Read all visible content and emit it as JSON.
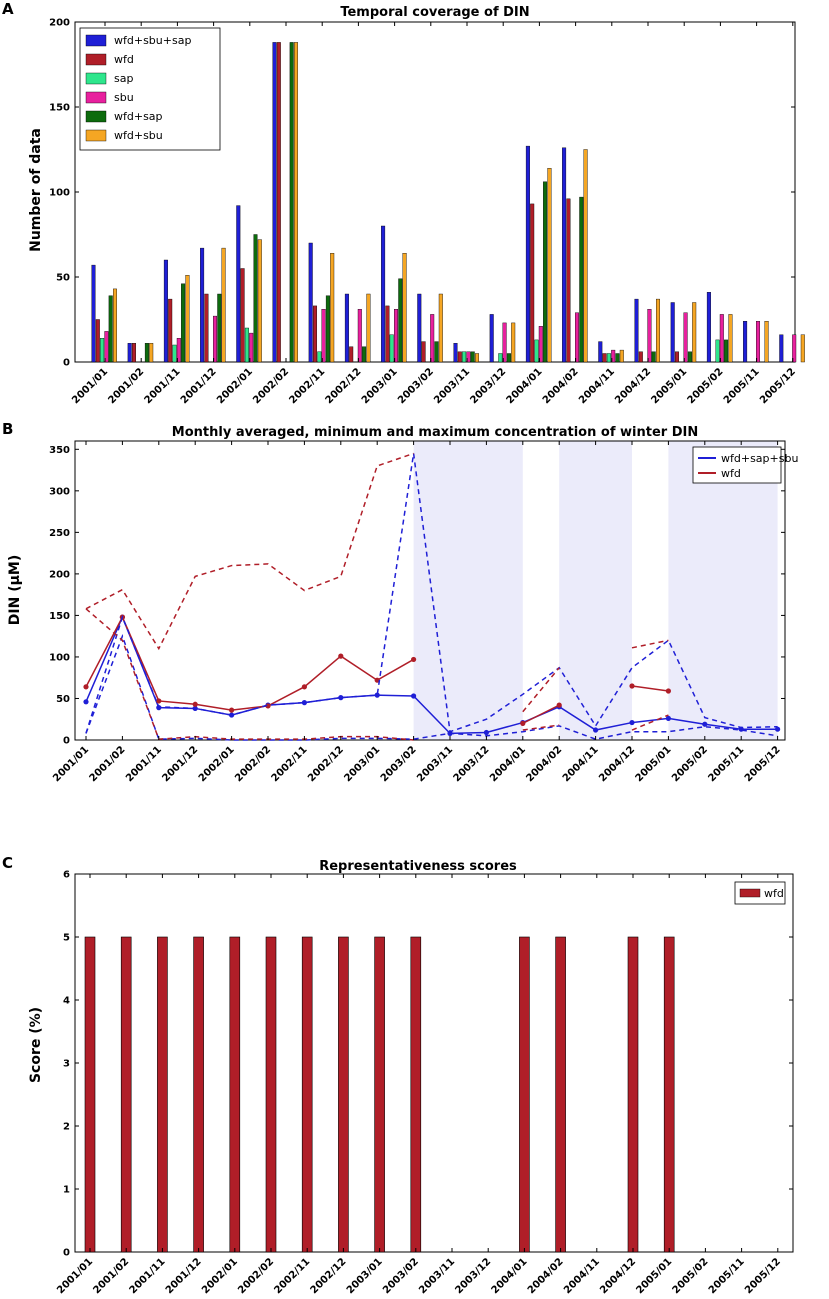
{
  "categories": [
    "2001/01",
    "2001/02",
    "2001/11",
    "2001/12",
    "2002/01",
    "2002/02",
    "2002/11",
    "2002/12",
    "2003/01",
    "2003/02",
    "2003/11",
    "2003/12",
    "2004/01",
    "2004/02",
    "2004/11",
    "2004/12",
    "2005/01",
    "2005/02",
    "2005/11",
    "2005/12"
  ],
  "chart_data": [
    {
      "panel": "A",
      "type": "bar",
      "title": "Temporal coverage of DIN",
      "xlabel": "",
      "ylabel": "Number of data",
      "ylim": [
        0,
        200
      ],
      "yticks": [
        0,
        50,
        100,
        150,
        200
      ],
      "legend_position": "top-left",
      "series": [
        {
          "name": "wfd+sbu+sap",
          "color": "#1f1fd6",
          "values": [
            57,
            11,
            60,
            67,
            92,
            188,
            70,
            40,
            80,
            40,
            11,
            28,
            127,
            126,
            12,
            37,
            35,
            41,
            24,
            16
          ]
        },
        {
          "name": "wfd",
          "color": "#b01e28",
          "values": [
            25,
            11,
            37,
            40,
            55,
            188,
            33,
            9,
            33,
            12,
            6,
            0,
            93,
            96,
            5,
            6,
            6,
            0,
            0,
            0
          ]
        },
        {
          "name": "sap",
          "color": "#2ee68c",
          "values": [
            14,
            0,
            10,
            0,
            20,
            0,
            6,
            0,
            16,
            0,
            6,
            5,
            13,
            0,
            5,
            0,
            0,
            13,
            0,
            0
          ]
        },
        {
          "name": "sbu",
          "color": "#e8209e",
          "values": [
            18,
            0,
            14,
            27,
            17,
            0,
            31,
            31,
            31,
            28,
            6,
            23,
            21,
            29,
            7,
            31,
            29,
            28,
            24,
            16
          ]
        },
        {
          "name": "wfd+sap",
          "color": "#0d6b0d",
          "values": [
            39,
            11,
            46,
            40,
            75,
            188,
            39,
            9,
            49,
            12,
            6,
            5,
            106,
            97,
            5,
            6,
            6,
            13,
            0,
            0
          ]
        },
        {
          "name": "wfd+sbu",
          "color": "#f5a623",
          "values": [
            43,
            11,
            51,
            67,
            72,
            188,
            64,
            40,
            64,
            40,
            5,
            23,
            114,
            125,
            7,
            37,
            35,
            28,
            24,
            16
          ]
        }
      ]
    },
    {
      "panel": "B",
      "type": "line",
      "title": "Monthly averaged, minimum and maximum concentration of winter DIN",
      "xlabel": "",
      "ylabel": "DIN (μM)",
      "ylim": [
        0,
        360
      ],
      "yticks": [
        0,
        50,
        100,
        150,
        200,
        250,
        300,
        350
      ],
      "legend_position": "top-right",
      "shaded_ranges": [
        [
          "2003/02",
          "2004/01"
        ],
        [
          "2004/02",
          "2004/12"
        ],
        [
          "2005/01",
          "2005/12"
        ]
      ],
      "series": [
        {
          "name": "wfd+sap+sbu",
          "color": "#1f1fd6",
          "style": "solid",
          "values": [
            46,
            148,
            39,
            38,
            30,
            42,
            45,
            51,
            54,
            53,
            8,
            9,
            21,
            40,
            12,
            21,
            26,
            19,
            13,
            13
          ]
        },
        {
          "name": "wfd",
          "color": "#b01e28",
          "style": "solid",
          "values": [
            64,
            148,
            47,
            43,
            36,
            41,
            64,
            101,
            72,
            97,
            null,
            null,
            20,
            42,
            null,
            65,
            59,
            null,
            null,
            null
          ]
        },
        {
          "name": "wfd+sap+sbu min",
          "color": "#1f1fd6",
          "style": "dashed",
          "legend": false,
          "values": [
            8,
            125,
            1,
            2,
            0,
            0,
            0,
            2,
            2,
            1,
            8,
            5,
            10,
            17,
            1,
            10,
            10,
            16,
            12,
            5
          ]
        },
        {
          "name": "wfd+sap+sbu max",
          "color": "#1f1fd6",
          "style": "dashed",
          "legend": false,
          "values": [
            8,
            148,
            40,
            38,
            30,
            42,
            45,
            51,
            54,
            345,
            10,
            25,
            55,
            87,
            17,
            87,
            120,
            27,
            15,
            16
          ]
        },
        {
          "name": "wfd min",
          "color": "#b01e28",
          "style": "dashed",
          "legend": false,
          "values": [
            158,
            120,
            1,
            4,
            1,
            1,
            1,
            4,
            4,
            0,
            null,
            null,
            12,
            18,
            null,
            12,
            30,
            null,
            null,
            null
          ]
        },
        {
          "name": "wfd max",
          "color": "#b01e28",
          "style": "dashed",
          "legend": false,
          "values": [
            158,
            181,
            110,
            197,
            210,
            212,
            180,
            197,
            330,
            345,
            null,
            null,
            34,
            87,
            null,
            111,
            120,
            null,
            null,
            null
          ]
        }
      ]
    },
    {
      "panel": "C",
      "type": "bar",
      "title": "Representativeness scores",
      "xlabel": "",
      "ylabel": "Score (%)",
      "ylim": [
        0,
        6
      ],
      "yticks": [
        0,
        1,
        2,
        3,
        4,
        5,
        6
      ],
      "legend_position": "top-right",
      "series": [
        {
          "name": "wfd",
          "color": "#b01e28",
          "values": [
            5,
            5,
            5,
            5,
            5,
            5,
            5,
            5,
            5,
            5,
            0,
            0,
            5,
            5,
            0,
            5,
            5,
            0,
            0,
            0
          ]
        }
      ]
    }
  ]
}
